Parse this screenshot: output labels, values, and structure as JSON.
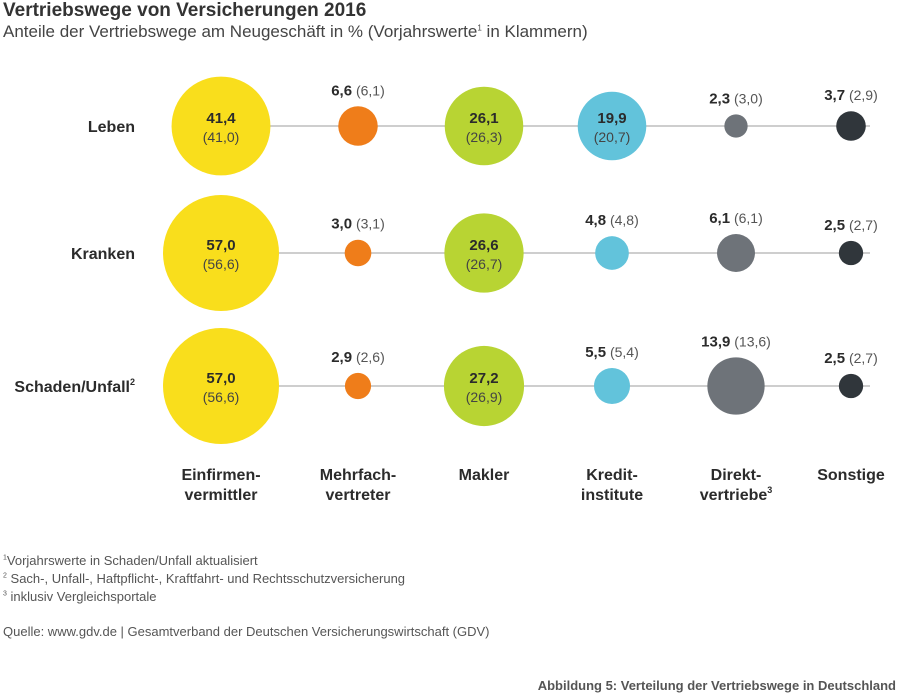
{
  "header": {
    "title": "Vertriebswege von Versicherungen 2016",
    "subtitle_pre": "Anteile der Vertriebswege am Neugeschäft in % (Vorjahrswerte",
    "subtitle_sup": "1",
    "subtitle_post": " in Klammern)"
  },
  "chart_data": {
    "type": "scatter",
    "title": "Vertriebswege von Versicherungen 2016",
    "subtitle": "Anteile der Vertriebswege am Neugeschäft in % (Vorjahrswerte¹ in Klammern)",
    "categories": [
      {
        "line1": "Einfirmen-",
        "line2": "vermittler",
        "sup": ""
      },
      {
        "line1": "Mehrfach-",
        "line2": "vertreter",
        "sup": ""
      },
      {
        "line1": "",
        "line2": "Makler",
        "sup": ""
      },
      {
        "line1": "Kredit-",
        "line2": "institute",
        "sup": ""
      },
      {
        "line1": "Direkt-",
        "line2": "vertriebe",
        "sup": "3"
      },
      {
        "line1": "",
        "line2": "Sonstige",
        "sup": ""
      }
    ],
    "colors": [
      "#f9de1c",
      "#ef7d1a",
      "#b8d433",
      "#62c3db",
      "#6e7379",
      "#30363b"
    ],
    "series": [
      {
        "name": "Leben",
        "sup": "",
        "values": [
          41.4,
          6.6,
          26.1,
          19.9,
          2.3,
          3.7
        ],
        "previous": [
          41.0,
          6.1,
          26.3,
          20.7,
          3.0,
          2.9
        ],
        "value_labels": [
          "41,4",
          "6,6",
          "26,1",
          "19,9",
          "2,3",
          "3,7"
        ],
        "previous_labels": [
          "(41,0)",
          "(6,1)",
          "(26,3)",
          "(20,7)",
          "(3,0)",
          "(2,9)"
        ]
      },
      {
        "name": "Kranken",
        "sup": "",
        "values": [
          57.0,
          3.0,
          26.6,
          4.8,
          6.1,
          2.5
        ],
        "previous": [
          56.6,
          3.1,
          26.7,
          4.8,
          6.1,
          2.7
        ],
        "value_labels": [
          "57,0",
          "3,0",
          "26,6",
          "4,8",
          "6,1",
          "2,5"
        ],
        "previous_labels": [
          "(56,6)",
          "(3,1)",
          "(26,7)",
          "(4,8)",
          "(6,1)",
          "(2,7)"
        ]
      },
      {
        "name": "Schaden/Unfall",
        "sup": "2",
        "values": [
          57.0,
          2.9,
          27.2,
          5.5,
          13.9,
          2.5
        ],
        "previous": [
          56.6,
          2.6,
          26.9,
          5.4,
          13.6,
          2.7
        ],
        "value_labels": [
          "57,0",
          "2,9",
          "27,2",
          "5,5",
          "13,9",
          "2,5"
        ],
        "previous_labels": [
          "(56,6)",
          "(2,6)",
          "(26,9)",
          "(5,4)",
          "(13,6)",
          "(2,7)"
        ]
      }
    ]
  },
  "footnotes": {
    "f1_num": "1",
    "f1_text": "Vorjahrswerte in Schaden/Unfall aktualisiert",
    "f2_num": "2",
    "f2_text": "Sach-, Unfall-, Haftpflicht-, Kraftfahrt- und Rechtsschutzversicherung",
    "f3_num": "3",
    "f3_text": "inklusiv Vergleichsportale"
  },
  "source": "Quelle: www.gdv.de | Gesamtverband der Deutschen Versicherungswirtschaft (GDV)",
  "caption": "Abbildung 5: Verteilung der Vertriebswege in Deutschland"
}
